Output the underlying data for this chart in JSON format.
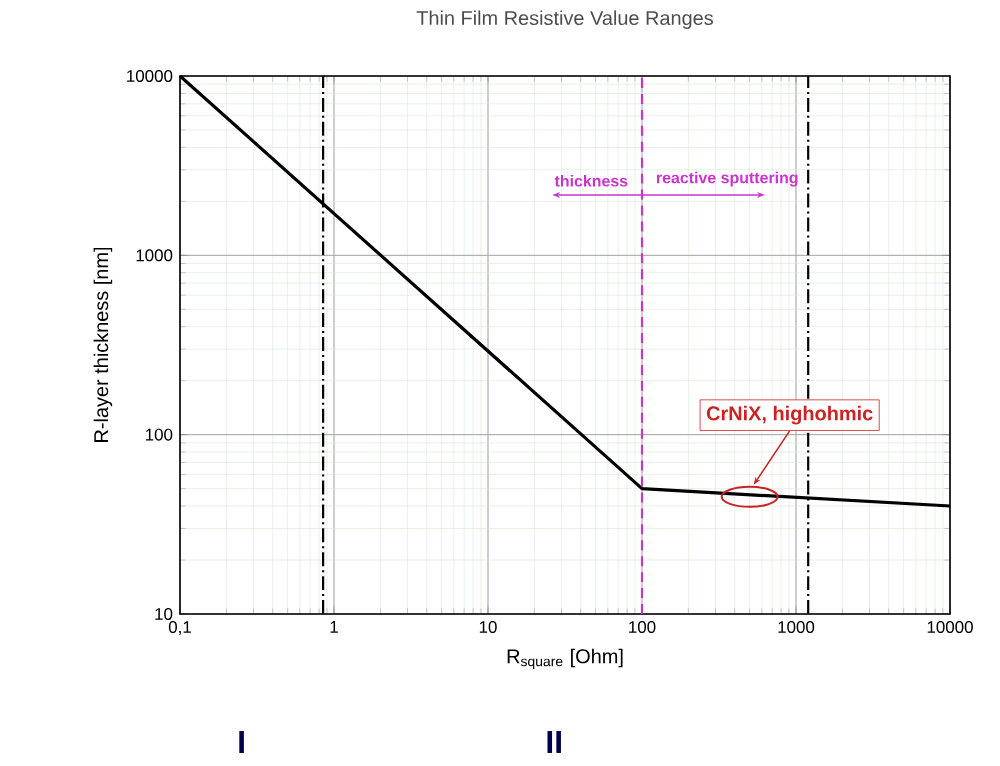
{
  "chart_data": {
    "type": "line",
    "title": "Thin Film Resistive Value Ranges",
    "xlabel": "R$_{square}$ [Ohm]",
    "ylabel": "R-layer thickness [nm]",
    "x": [
      0.1,
      100,
      10000
    ],
    "series": [
      {
        "color": "#000000",
        "values": [
          10000,
          50,
          40
        ]
      }
    ],
    "xlim": [
      0.1,
      10000
    ],
    "ylim": [
      10,
      10000
    ],
    "xticks": [
      {
        "value": 0.1,
        "label": "0,1"
      },
      1,
      10,
      100,
      1000,
      10000
    ],
    "yticks": [
      10,
      100,
      1000,
      10000
    ],
    "log": "xy",
    "grid": true,
    "marker": "none",
    "line_style": "solid",
    "ref_lines": [
      {
        "axis": "x",
        "value": 0.85,
        "color": "#000000",
        "line_style": "dashdot"
      },
      {
        "axis": "x",
        "value": 100,
        "color": "#cc33cc",
        "line_style": "dashed"
      },
      {
        "axis": "x",
        "value": 1200,
        "color": "#000000",
        "line_style": "dashdot"
      }
    ],
    "annotations": [
      "thickness",
      "reactive sputtering",
      {
        "text": "CrNiX, highohmic",
        "x": 500,
        "y": 45
      },
      "I",
      "II"
    ]
  }
}
